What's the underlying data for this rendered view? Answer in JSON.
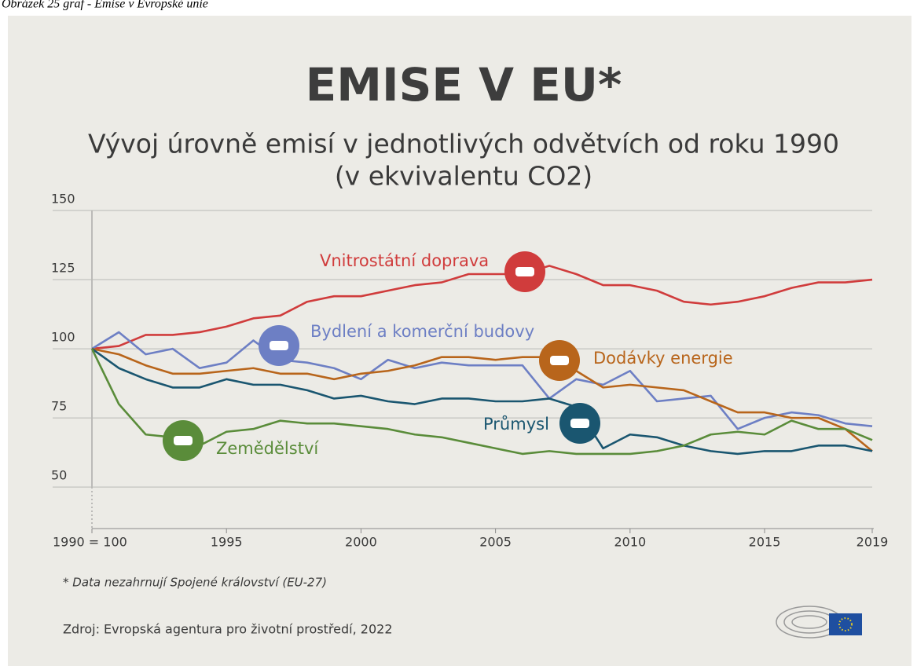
{
  "caption": "Obrázek 25 graf - Emise v Evropské unie",
  "chart_data": {
    "type": "line",
    "title": "EMISE V EU*",
    "subtitle": [
      "Vývoj úrovně emisí v jednotlivých odvětvích od roku 1990",
      "(v ekvivalentu CO2)"
    ],
    "x": [
      1990,
      1991,
      1992,
      1993,
      1994,
      1995,
      1996,
      1997,
      1998,
      1999,
      2000,
      2001,
      2002,
      2003,
      2004,
      2005,
      2006,
      2007,
      2008,
      2009,
      2010,
      2011,
      2012,
      2013,
      2014,
      2015,
      2016,
      2017,
      2018,
      2019
    ],
    "xlim": [
      1990,
      2019
    ],
    "xticks": [
      {
        "value": 1990,
        "label": "1990 = 100"
      },
      1995,
      2000,
      2005,
      2010,
      2015,
      2019
    ],
    "ylim": [
      35,
      150
    ],
    "yticks": [
      50,
      75,
      100,
      125,
      150
    ],
    "grid": true,
    "series": [
      {
        "name": "Vnitrostátní doprava",
        "color": "#d03c3c",
        "values": [
          100,
          101,
          105,
          105,
          106,
          108,
          111,
          112,
          117,
          119,
          119,
          121,
          123,
          124,
          127,
          127,
          127,
          130,
          127,
          123,
          123,
          121,
          117,
          116,
          117,
          119,
          122,
          124,
          124,
          125
        ]
      },
      {
        "name": "Bydlení a komerční budovy",
        "color": "#6d7fc4",
        "values": [
          100,
          106,
          98,
          100,
          93,
          95,
          103,
          96,
          95,
          93,
          89,
          96,
          93,
          95,
          94,
          94,
          94,
          82,
          89,
          87,
          92,
          81,
          82,
          83,
          71,
          75,
          77,
          76,
          73,
          72
        ]
      },
      {
        "name": "Dodávky energie",
        "color": "#b8651b",
        "values": [
          100,
          98,
          94,
          91,
          91,
          92,
          93,
          91,
          91,
          89,
          91,
          92,
          94,
          97,
          97,
          96,
          97,
          97,
          92,
          86,
          87,
          86,
          85,
          81,
          77,
          77,
          75,
          75,
          71,
          63
        ]
      },
      {
        "name": "Průmysl",
        "color": "#1a5670",
        "values": [
          100,
          93,
          89,
          86,
          86,
          89,
          87,
          87,
          85,
          82,
          83,
          81,
          80,
          82,
          82,
          81,
          81,
          82,
          79,
          64,
          69,
          68,
          65,
          63,
          62,
          63,
          63,
          65,
          65,
          63
        ]
      },
      {
        "name": "Zemědělství",
        "color": "#5a8c3a",
        "values": [
          100,
          80,
          69,
          68,
          65,
          70,
          71,
          74,
          73,
          73,
          72,
          71,
          69,
          68,
          66,
          64,
          62,
          63,
          62,
          62,
          62,
          63,
          65,
          69,
          70,
          69,
          74,
          71,
          71,
          67
        ]
      }
    ],
    "footnote": "* Data nezahrnují Spojené království (EU-27)",
    "source": "Zdroj: Evropská agentura pro životní prostředí, 2022"
  }
}
